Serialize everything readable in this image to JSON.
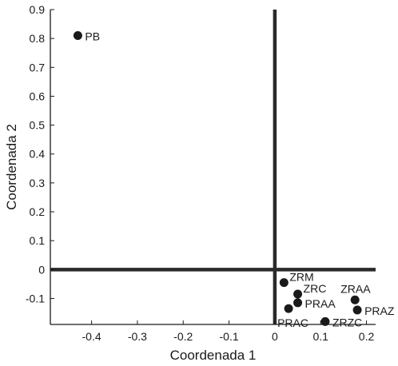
{
  "chart_data": {
    "type": "scatter",
    "xlabel": "Coordenada 1",
    "ylabel": "Coordenada 2",
    "xlim": [
      -0.49,
      0.22
    ],
    "ylim": [
      -0.19,
      0.9
    ],
    "x_ticks": [
      -0.4,
      -0.3,
      -0.2,
      -0.1,
      0,
      0.1,
      0.2
    ],
    "x_tick_labels": [
      "-0.4",
      "-0.3",
      "-0.2",
      "-0.1",
      "0",
      "0.1",
      "0.2"
    ],
    "y_ticks": [
      -0.1,
      0,
      0.1,
      0.2,
      0.3,
      0.4,
      0.5,
      0.6,
      0.7,
      0.8,
      0.9
    ],
    "y_tick_labels": [
      "-0.1",
      "0",
      "0.1",
      "0.2",
      "0.3",
      "0.4",
      "0.5",
      "0.6",
      "0.7",
      "0.8",
      "0.9"
    ],
    "reference_lines": {
      "x": 0,
      "y": 0
    },
    "grid": false,
    "legend": "none",
    "point_color": "#1a1a1a",
    "points": [
      {
        "label": "PB",
        "x": -0.43,
        "y": 0.81,
        "label_pos": "right"
      },
      {
        "label": "ZRM",
        "x": 0.02,
        "y": -0.045,
        "label_pos": "upper-right"
      },
      {
        "label": "ZRC",
        "x": 0.05,
        "y": -0.085,
        "label_pos": "upper-right"
      },
      {
        "label": "PRAA",
        "x": 0.05,
        "y": -0.115,
        "label_pos": "right"
      },
      {
        "label": "PRAC",
        "x": 0.03,
        "y": -0.135,
        "label_pos": "below"
      },
      {
        "label": "ZRZC",
        "x": 0.11,
        "y": -0.18,
        "label_pos": "right"
      },
      {
        "label": "ZRAA",
        "x": 0.175,
        "y": -0.105,
        "label_pos": "upper-left"
      },
      {
        "label": "PRAZ",
        "x": 0.18,
        "y": -0.14,
        "label_pos": "right"
      }
    ]
  }
}
